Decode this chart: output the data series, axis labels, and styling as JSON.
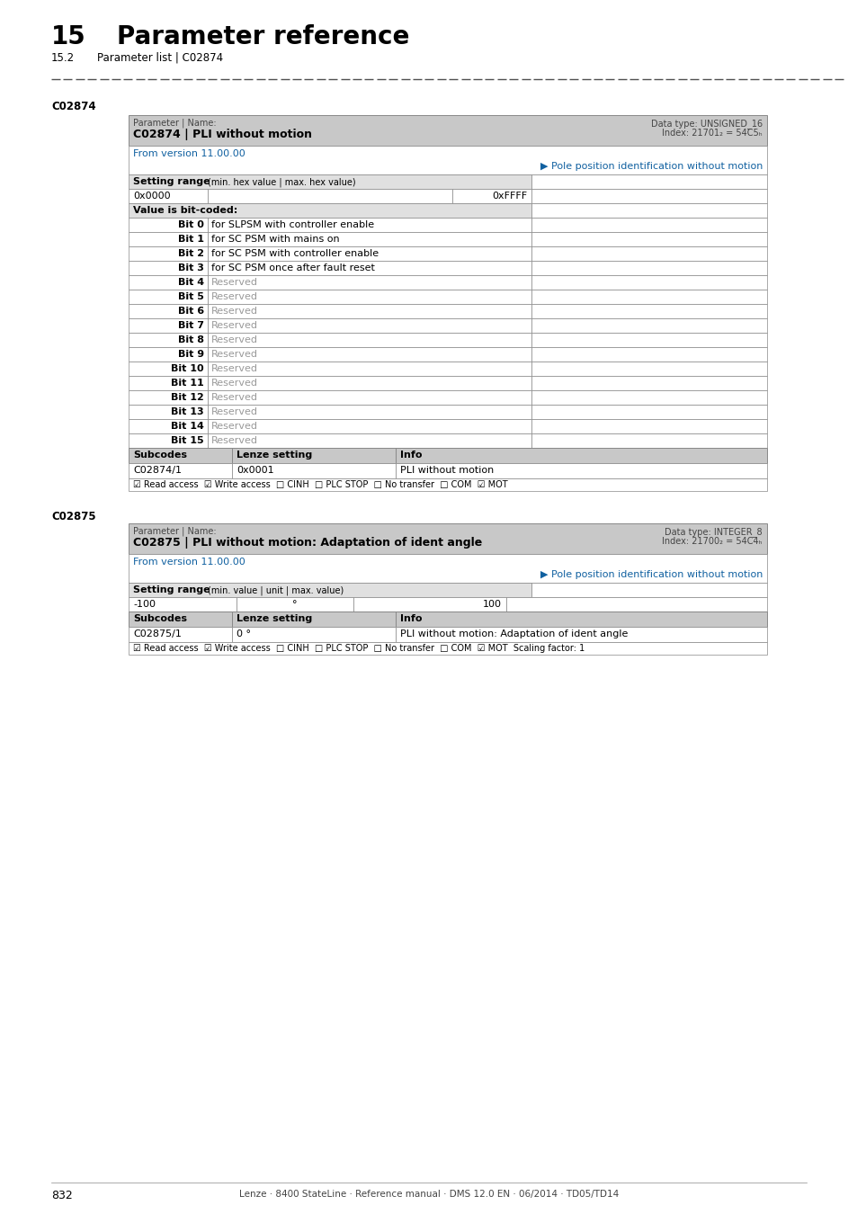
{
  "title_number": "15",
  "title_text": "Parameter reference",
  "subtitle_number": "15.2",
  "subtitle_text": "Parameter list | C02874",
  "page_number": "832",
  "footer_text": "Lenze · 8400 StateLine · Reference manual · DMS 12.0 EN · 06/2014 · TD05/TD14",
  "section_c02874": {
    "label": "C02874",
    "param_label": "Parameter | Name:",
    "param_name": "C02874 | PLI without motion",
    "data_type": "Data type: UNSIGNED_16",
    "index": "Index: 21701₂ = 54C5ₕ",
    "from_version": "From version 11.00.00",
    "link_text": "▶ Pole position identification without motion",
    "min_val": "0x0000",
    "max_val": "0xFFFF",
    "bit_coded_label": "Value is bit-coded:",
    "bits": [
      [
        "Bit 0",
        "for SLPSM with controller enable",
        false
      ],
      [
        "Bit 1",
        "for SC PSM with mains on",
        false
      ],
      [
        "Bit 2",
        "for SC PSM with controller enable",
        false
      ],
      [
        "Bit 3",
        "for SC PSM once after fault reset",
        false
      ],
      [
        "Bit 4",
        "Reserved",
        true
      ],
      [
        "Bit 5",
        "Reserved",
        true
      ],
      [
        "Bit 6",
        "Reserved",
        true
      ],
      [
        "Bit 7",
        "Reserved",
        true
      ],
      [
        "Bit 8",
        "Reserved",
        true
      ],
      [
        "Bit 9",
        "Reserved",
        true
      ],
      [
        "Bit 10",
        "Reserved",
        true
      ],
      [
        "Bit 11",
        "Reserved",
        true
      ],
      [
        "Bit 12",
        "Reserved",
        true
      ],
      [
        "Bit 13",
        "Reserved",
        true
      ],
      [
        "Bit 14",
        "Reserved",
        true
      ],
      [
        "Bit 15",
        "Reserved",
        true
      ]
    ],
    "subcodes_header": [
      "Subcodes",
      "Lenze setting",
      "Info"
    ],
    "subcodes_row": [
      "C02874/1",
      "0x0001",
      "PLI without motion"
    ],
    "access_line": "☑ Read access  ☑ Write access  □ CINH  □ PLC STOP  □ No transfer  □ COM  ☑ MOT"
  },
  "section_c02875": {
    "label": "C02875",
    "param_label": "Parameter | Name:",
    "param_name": "C02875 | PLI without motion: Adaptation of ident angle",
    "data_type": "Data type: INTEGER_8",
    "index": "Index: 21700₂ = 54C4ₕ",
    "from_version": "From version 11.00.00",
    "link_text": "▶ Pole position identification without motion",
    "min_val": "-100",
    "unit": "°",
    "max_val": "100",
    "subcodes_header": [
      "Subcodes",
      "Lenze setting",
      "Info"
    ],
    "subcodes_row": [
      "C02875/1",
      "0 °",
      "PLI without motion: Adaptation of ident angle"
    ],
    "access_line": "☑ Read access  ☑ Write access  □ CINH  □ PLC STOP  □ No transfer  □ COM  ☑ MOT  Scaling factor: 1"
  }
}
